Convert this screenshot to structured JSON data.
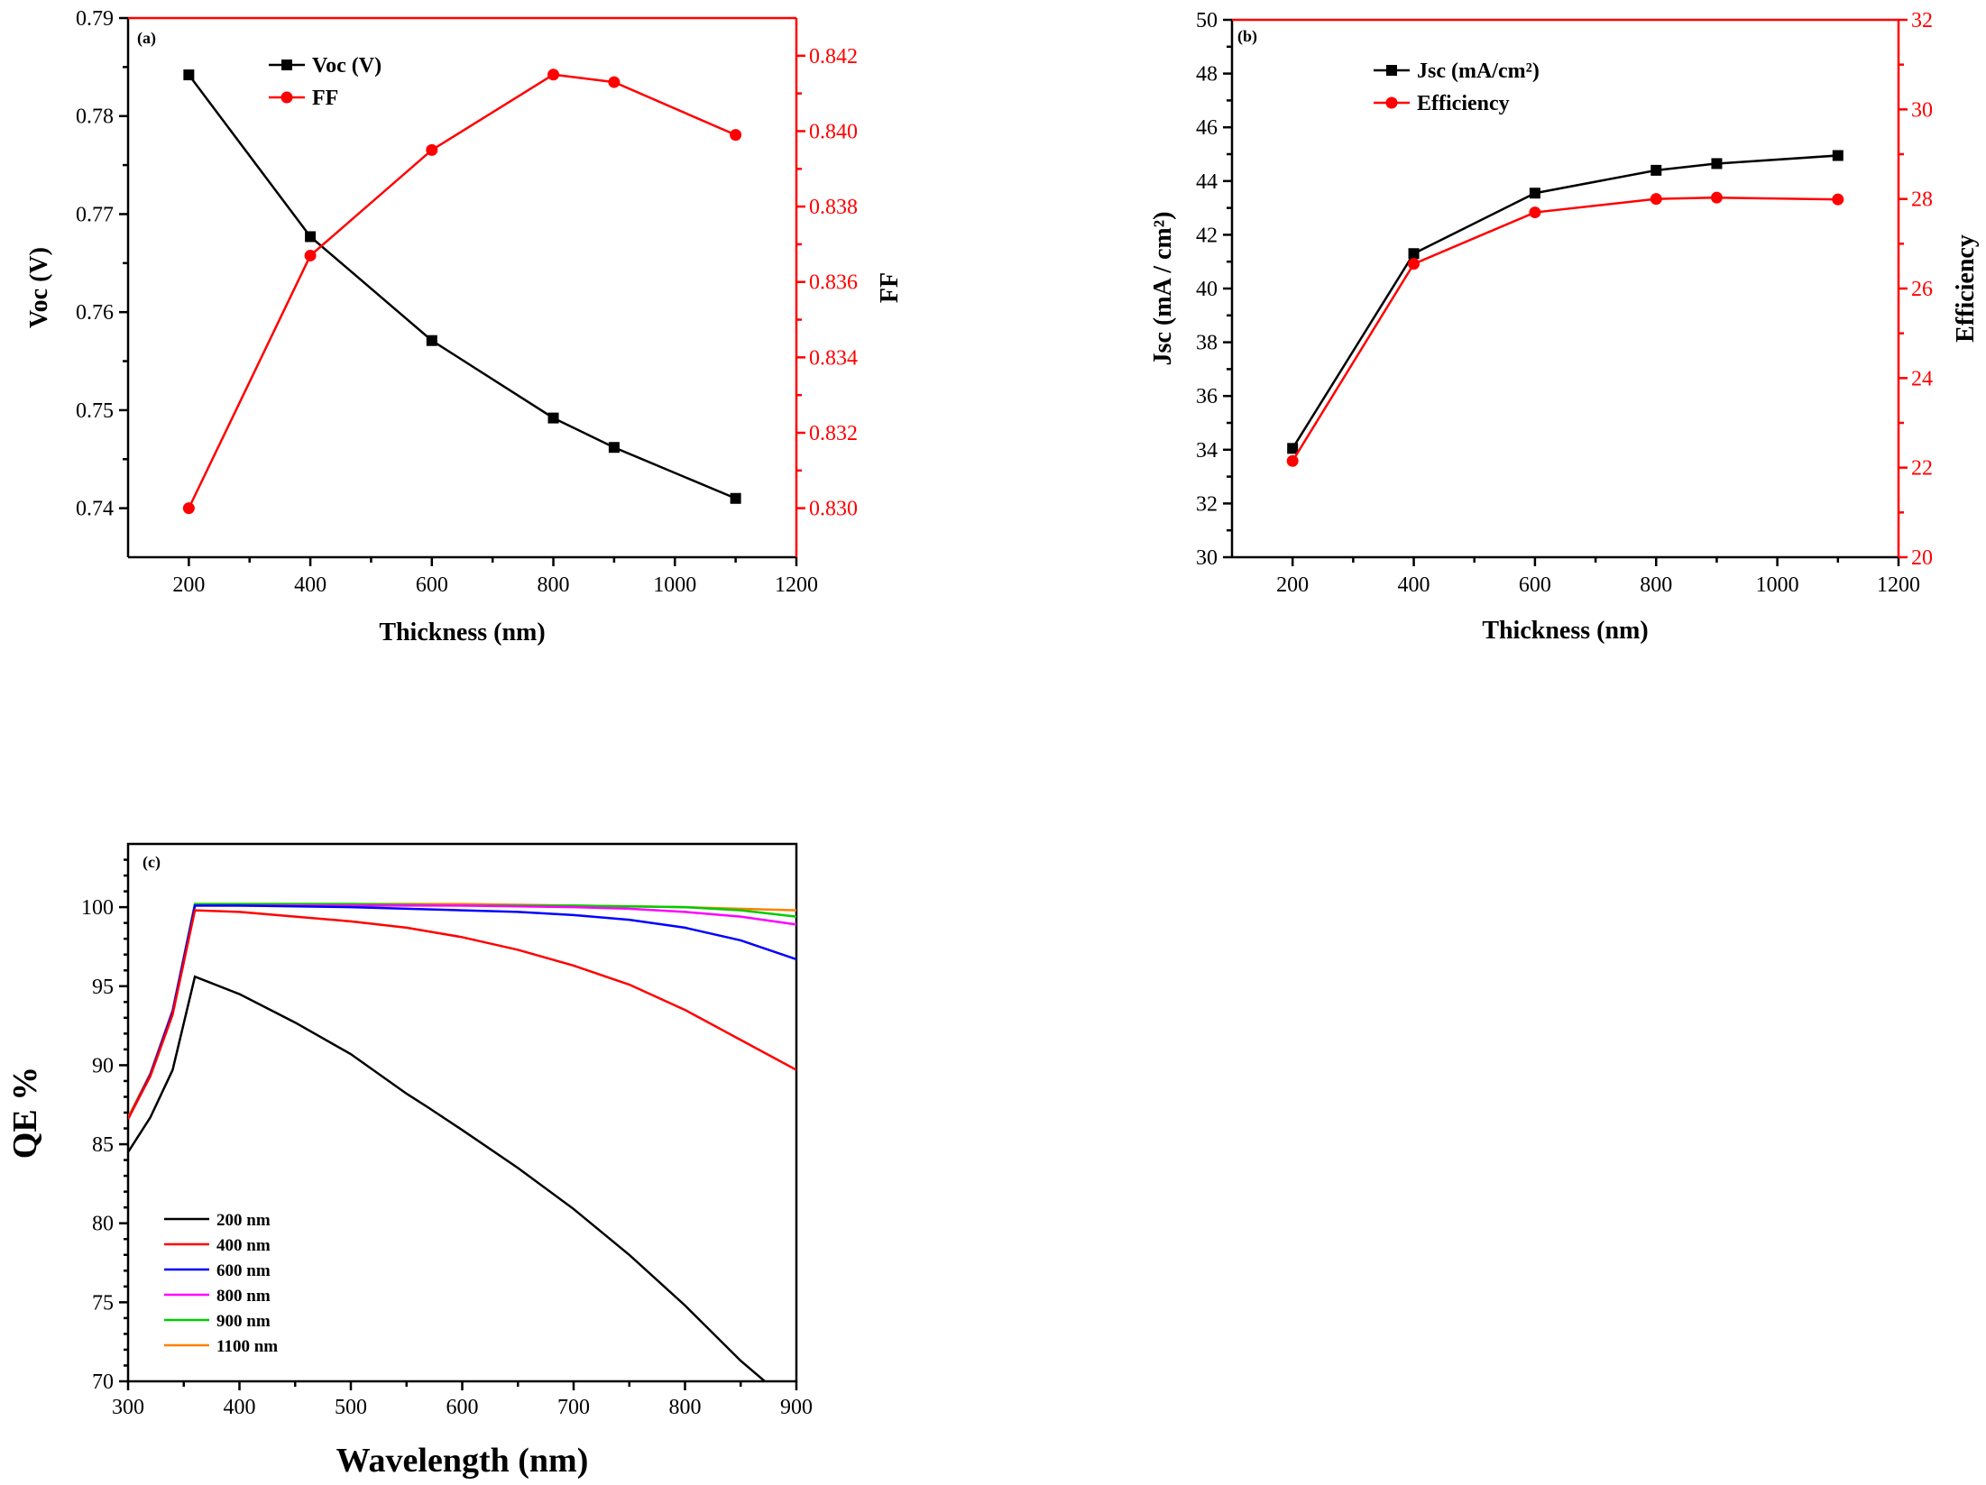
{
  "chart_data": [
    {
      "id": "a",
      "type": "line",
      "panel_label": "(a)",
      "xlabel": "Thickness (nm)",
      "ylabel": "Voc (V)",
      "y2label": "FF",
      "xlim": [
        100,
        1200
      ],
      "ylim": [
        0.735,
        0.79
      ],
      "y2lim": [
        0.8287,
        0.843
      ],
      "xticks": [
        "200",
        "400",
        "600",
        "800",
        "1000",
        "1200"
      ],
      "yticks": [
        "0.74",
        "0.75",
        "0.76",
        "0.77",
        "0.78",
        "0.79"
      ],
      "y2ticks": [
        "0.830",
        "0.832",
        "0.834",
        "0.836",
        "0.838",
        "0.840",
        "0.842"
      ],
      "legend_position": "top-center",
      "series": [
        {
          "name": "Voc (V)",
          "axis": "left",
          "color": "#000000",
          "marker": "square",
          "x": [
            200,
            400,
            600,
            800,
            900,
            1100
          ],
          "values": [
            0.7842,
            0.7677,
            0.7571,
            0.7492,
            0.7462,
            0.741
          ]
        },
        {
          "name": "FF",
          "axis": "right",
          "color": "#ff0000",
          "marker": "circle",
          "x": [
            200,
            400,
            600,
            800,
            900,
            1100
          ],
          "values": [
            0.83,
            0.8367,
            0.8395,
            0.8415,
            0.8413,
            0.8399
          ]
        }
      ]
    },
    {
      "id": "b",
      "type": "line",
      "panel_label": "(b)",
      "xlabel": "Thickness (nm)",
      "ylabel": "Jsc (mA / cm²)",
      "y2label": "Efficiency",
      "xlim": [
        100,
        1200
      ],
      "ylim": [
        30,
        50
      ],
      "y2lim": [
        20,
        32
      ],
      "xticks": [
        "200",
        "400",
        "600",
        "800",
        "1000",
        "1200"
      ],
      "yticks": [
        "30",
        "32",
        "34",
        "36",
        "38",
        "40",
        "42",
        "44",
        "46",
        "48",
        "50"
      ],
      "y2ticks": [
        "20",
        "22",
        "24",
        "26",
        "28",
        "30",
        "32"
      ],
      "legend_position": "top-left",
      "series": [
        {
          "name": "Jsc (mA/cm²)",
          "axis": "left",
          "color": "#000000",
          "marker": "square",
          "x": [
            200,
            400,
            600,
            800,
            900,
            1100
          ],
          "values": [
            34.05,
            41.3,
            43.55,
            44.4,
            44.65,
            44.95
          ]
        },
        {
          "name": "Efficiency",
          "axis": "right",
          "color": "#ff0000",
          "marker": "circle",
          "x": [
            200,
            400,
            600,
            800,
            900,
            1100
          ],
          "values": [
            22.15,
            26.55,
            27.7,
            28.0,
            28.03,
            27.99
          ]
        }
      ]
    },
    {
      "id": "c",
      "type": "line",
      "panel_label": "(c)",
      "xlabel": "Wavelength (nm)",
      "ylabel": "QE %",
      "xlim": [
        300,
        900
      ],
      "ylim": [
        70,
        104
      ],
      "xticks": [
        "300",
        "400",
        "500",
        "600",
        "700",
        "800",
        "900"
      ],
      "yticks": [
        "70",
        "75",
        "80",
        "85",
        "90",
        "95",
        "100"
      ],
      "legend_position": "bottom-left",
      "series": [
        {
          "name": "200 nm",
          "color": "#000000",
          "x": [
            300,
            320,
            340,
            360,
            400,
            450,
            500,
            550,
            570,
            600,
            650,
            700,
            750,
            800,
            850,
            875
          ],
          "values": [
            84.5,
            86.7,
            89.7,
            95.6,
            94.5,
            92.7,
            90.7,
            88.2,
            87.3,
            85.9,
            83.5,
            80.9,
            78.0,
            74.8,
            71.3,
            69.8
          ]
        },
        {
          "name": "400 nm",
          "color": "#ff0000",
          "x": [
            300,
            320,
            340,
            360,
            400,
            450,
            500,
            550,
            600,
            650,
            700,
            750,
            800,
            850,
            900
          ],
          "values": [
            86.6,
            89.3,
            93.2,
            99.8,
            99.7,
            99.4,
            99.1,
            98.7,
            98.1,
            97.3,
            96.3,
            95.1,
            93.5,
            91.6,
            89.7
          ]
        },
        {
          "name": "600 nm",
          "color": "#0000ff",
          "x": [
            300,
            320,
            340,
            360,
            400,
            500,
            600,
            650,
            700,
            750,
            800,
            850,
            900
          ],
          "values": [
            86.6,
            89.4,
            93.4,
            100.1,
            100.1,
            100.0,
            99.8,
            99.7,
            99.5,
            99.2,
            98.7,
            97.9,
            96.7
          ]
        },
        {
          "name": "800 nm",
          "color": "#ff00ff",
          "x": [
            300,
            320,
            340,
            360,
            400,
            500,
            600,
            700,
            750,
            800,
            850,
            900
          ],
          "values": [
            86.6,
            89.4,
            93.4,
            100.1,
            100.1,
            100.1,
            100.1,
            100.0,
            99.9,
            99.7,
            99.4,
            98.9
          ]
        },
        {
          "name": "900 nm",
          "color": "#00cc00",
          "x": [
            300,
            320,
            340,
            360,
            400,
            500,
            600,
            700,
            800,
            850,
            900
          ],
          "values": [
            86.6,
            89.4,
            93.4,
            100.2,
            100.2,
            100.2,
            100.1,
            100.1,
            100.0,
            99.8,
            99.4
          ]
        },
        {
          "name": "1100 nm",
          "color": "#ff8000",
          "x": [
            300,
            320,
            340,
            360,
            400,
            500,
            600,
            700,
            800,
            900
          ],
          "values": [
            86.7,
            89.5,
            93.5,
            100.2,
            100.2,
            100.2,
            100.2,
            100.1,
            100.0,
            99.8
          ]
        }
      ]
    }
  ]
}
